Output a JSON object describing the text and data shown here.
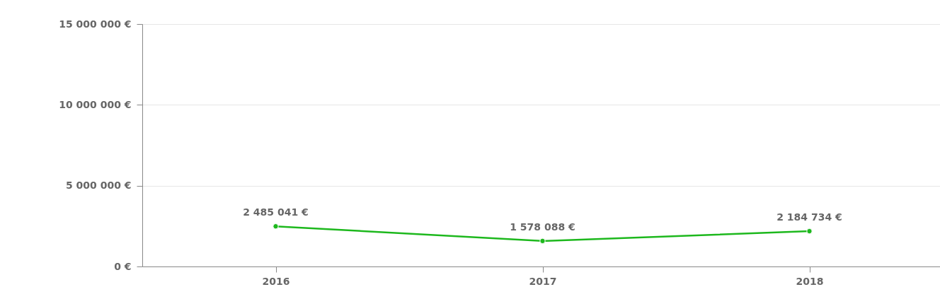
{
  "chart_data": {
    "type": "line",
    "categories": [
      "2016",
      "2017",
      "2018"
    ],
    "series": [
      {
        "color": "#1db81d",
        "values": [
          2485041,
          1578088,
          2184734
        ],
        "value_labels": [
          "2 485 041  €",
          "1 578 088  €",
          "2 184 734  €"
        ]
      }
    ],
    "ylim": [
      0,
      15000000
    ],
    "yticks": [
      {
        "value": 0,
        "label": "0  €"
      },
      {
        "value": 5000000,
        "label": "5 000 000  €"
      },
      {
        "value": 10000000,
        "label": "10 000 000  €"
      },
      {
        "value": 15000000,
        "label": "15 000 000  €"
      }
    ],
    "grid": "y",
    "marker": "circle"
  }
}
